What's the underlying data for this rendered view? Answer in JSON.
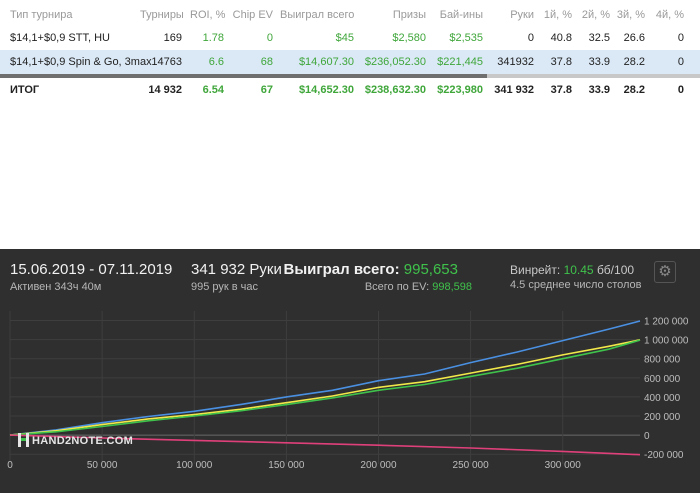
{
  "table": {
    "columns": [
      "Тип турнира",
      "Турниры",
      "ROI, %",
      "Chip EV",
      "Выиграл всего",
      "Призы",
      "Бай-ины",
      "Руки",
      "1й, %",
      "2й, %",
      "3й, %",
      "4й, %"
    ],
    "rows": [
      {
        "type": "$14,1+$0,9 STT, HU",
        "tournaments": "169",
        "roi": "1.78",
        "chip_ev": "0",
        "won": "$45",
        "prizes": "$2,580",
        "buyins": "$2,535",
        "hands": "0",
        "p1": "40.8",
        "p2": "32.5",
        "p3": "26.6",
        "p4": "0",
        "selected": false
      },
      {
        "type": "$14,1+$0,9 Spin & Go, 3max",
        "tournaments": "14763",
        "roi": "6.6",
        "chip_ev": "68",
        "won": "$14,607.30",
        "prizes": "$236,052.30",
        "buyins": "$221,445",
        "hands": "341932",
        "p1": "37.8",
        "p2": "33.9",
        "p3": "28.2",
        "p4": "0",
        "selected": true
      }
    ],
    "total": {
      "type": "ИТОГ",
      "tournaments": "14 932",
      "roi": "6.54",
      "chip_ev": "67",
      "won": "$14,652.30",
      "prizes": "$238,632.30",
      "buyins": "$223,980",
      "hands": "341 932",
      "p1": "37.8",
      "p2": "33.9",
      "p3": "28.2",
      "p4": "0"
    }
  },
  "graph": {
    "date_range": "15.06.2019 - 07.11.2019",
    "active": "Активен 343ч 40м",
    "hands_label": "341 932 Руки",
    "per_hour": "995 рук в час",
    "won_label": "Выиграл всего:",
    "won_value": "995,653",
    "ev_label": "Всего по EV:",
    "ev_value": "998,598",
    "winrate_label": "Винрейт:",
    "winrate_value": "10.45",
    "winrate_unit": "бб/100",
    "avg_tables": "4.5 среднее число столов",
    "logo_text": "HAND2NOTE.COM",
    "settings_icon": "gear-icon"
  },
  "chart_data": {
    "type": "line",
    "x_ticks": [
      "0",
      "50 000",
      "100 000",
      "150 000",
      "200 000",
      "250 000",
      "300 000"
    ],
    "y_ticks": [
      "1 200 000",
      "1 000 000",
      "800 000",
      "600 000",
      "400 000",
      "200 000",
      "0",
      "-200 000"
    ],
    "xlim": [
      0,
      341932
    ],
    "ylim": [
      -250000,
      1300000
    ],
    "grid": true,
    "series": [
      {
        "color": "#4a90e2",
        "points": [
          [
            0,
            0
          ],
          [
            25000,
            55000
          ],
          [
            50000,
            130000
          ],
          [
            75000,
            195000
          ],
          [
            100000,
            250000
          ],
          [
            125000,
            320000
          ],
          [
            150000,
            400000
          ],
          [
            175000,
            470000
          ],
          [
            200000,
            570000
          ],
          [
            225000,
            640000
          ],
          [
            250000,
            760000
          ],
          [
            275000,
            870000
          ],
          [
            300000,
            990000
          ],
          [
            325000,
            1110000
          ],
          [
            341932,
            1195000
          ]
        ]
      },
      {
        "color": "#f2e84a",
        "points": [
          [
            0,
            0
          ],
          [
            25000,
            45000
          ],
          [
            50000,
            110000
          ],
          [
            75000,
            170000
          ],
          [
            100000,
            215000
          ],
          [
            125000,
            270000
          ],
          [
            150000,
            340000
          ],
          [
            175000,
            410000
          ],
          [
            200000,
            500000
          ],
          [
            225000,
            560000
          ],
          [
            250000,
            650000
          ],
          [
            275000,
            740000
          ],
          [
            300000,
            840000
          ],
          [
            325000,
            930000
          ],
          [
            341932,
            998598
          ]
        ]
      },
      {
        "color": "#3fc24b",
        "points": [
          [
            0,
            0
          ],
          [
            25000,
            35000
          ],
          [
            50000,
            90000
          ],
          [
            75000,
            150000
          ],
          [
            100000,
            200000
          ],
          [
            125000,
            255000
          ],
          [
            150000,
            320000
          ],
          [
            175000,
            390000
          ],
          [
            200000,
            470000
          ],
          [
            225000,
            530000
          ],
          [
            250000,
            615000
          ],
          [
            275000,
            700000
          ],
          [
            300000,
            800000
          ],
          [
            325000,
            900000
          ],
          [
            341932,
            995653
          ]
        ]
      },
      {
        "color": "#e0407a",
        "points": [
          [
            0,
            0
          ],
          [
            50000,
            -30000
          ],
          [
            100000,
            -55000
          ],
          [
            150000,
            -80000
          ],
          [
            200000,
            -105000
          ],
          [
            250000,
            -135000
          ],
          [
            300000,
            -170000
          ],
          [
            341932,
            -205000
          ]
        ]
      }
    ]
  }
}
